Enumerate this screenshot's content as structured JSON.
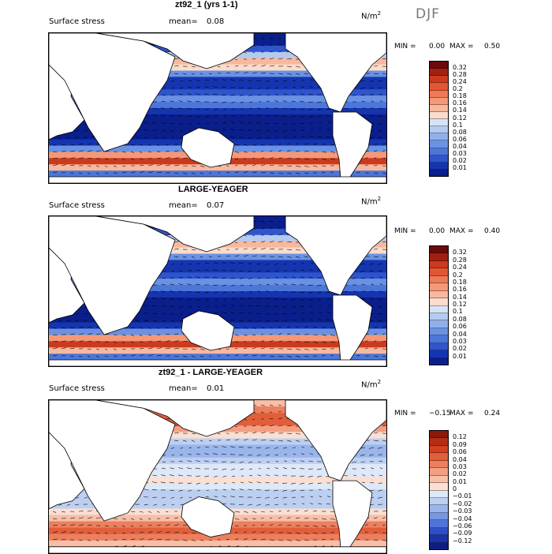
{
  "season": "DJF",
  "panels": [
    {
      "title": "zt92_1 (yrs 1-1)",
      "field": "Surface stress",
      "mean_label": "mean=",
      "mean": "0.08",
      "units_base": "N/m",
      "units_exp": "2",
      "min_label": "MIN =",
      "min": "0.00",
      "max_label": "MAX =",
      "max": "0.50",
      "colorbar": {
        "labels": [
          "0.32",
          "0.28",
          "0.24",
          "0.2",
          "0.18",
          "0.16",
          "0.14",
          "0.12",
          "0.1",
          "0.08",
          "0.06",
          "0.04",
          "0.03",
          "0.02",
          "0.01"
        ],
        "colors": [
          "#6b0a0a",
          "#a3200f",
          "#cc3a1e",
          "#e35533",
          "#ef7a56",
          "#f49878",
          "#f7b89e",
          "#fadccc",
          "#d5e3f7",
          "#b4caf0",
          "#8fb0eb",
          "#6a92e4",
          "#4d76da",
          "#2f55cc",
          "#1535b0",
          "#0a1f8c"
        ]
      }
    },
    {
      "title": "LARGE-YEAGER",
      "field": "Surface stress",
      "mean_label": "mean=",
      "mean": "0.07",
      "units_base": "N/m",
      "units_exp": "2",
      "min_label": "MIN =",
      "min": "0.00",
      "max_label": "MAX =",
      "max": "0.40",
      "colorbar": {
        "labels": [
          "0.32",
          "0.28",
          "0.24",
          "0.2",
          "0.18",
          "0.16",
          "0.14",
          "0.12",
          "0.1",
          "0.08",
          "0.06",
          "0.04",
          "0.03",
          "0.02",
          "0.01"
        ],
        "colors": [
          "#6b0a0a",
          "#a3200f",
          "#cc3a1e",
          "#e35533",
          "#ef7a56",
          "#f49878",
          "#f7b89e",
          "#fadccc",
          "#d5e3f7",
          "#b4caf0",
          "#8fb0eb",
          "#6a92e4",
          "#4d76da",
          "#2f55cc",
          "#1535b0",
          "#0a1f8c"
        ]
      }
    },
    {
      "title": "zt92_1 - LARGE-YEAGER",
      "field": "Surface stress",
      "mean_label": "mean=",
      "mean": "0.01",
      "units_base": "N/m",
      "units_exp": "2",
      "min_label": "MIN =",
      "min": "−0.15",
      "max_label": "MAX =",
      "max": "0.24",
      "colorbar": {
        "labels": [
          "0.12",
          "0.09",
          "0.06",
          "0.04",
          "0.03",
          "0.02",
          "0.01",
          "0",
          "−0.01",
          "−0.02",
          "−0.03",
          "−0.04",
          "−0.06",
          "−0.09",
          "−0.12"
        ],
        "colors": [
          "#8b1a0c",
          "#b52c14",
          "#d2401f",
          "#e25e3b",
          "#ec7f5e",
          "#f39f82",
          "#f7bea8",
          "#fadfd2",
          "#dde8f8",
          "#bccff1",
          "#99b5ec",
          "#7597e4",
          "#5074d8",
          "#2e4fc6",
          "#1b33a6",
          "#0e1e80"
        ]
      }
    }
  ]
}
